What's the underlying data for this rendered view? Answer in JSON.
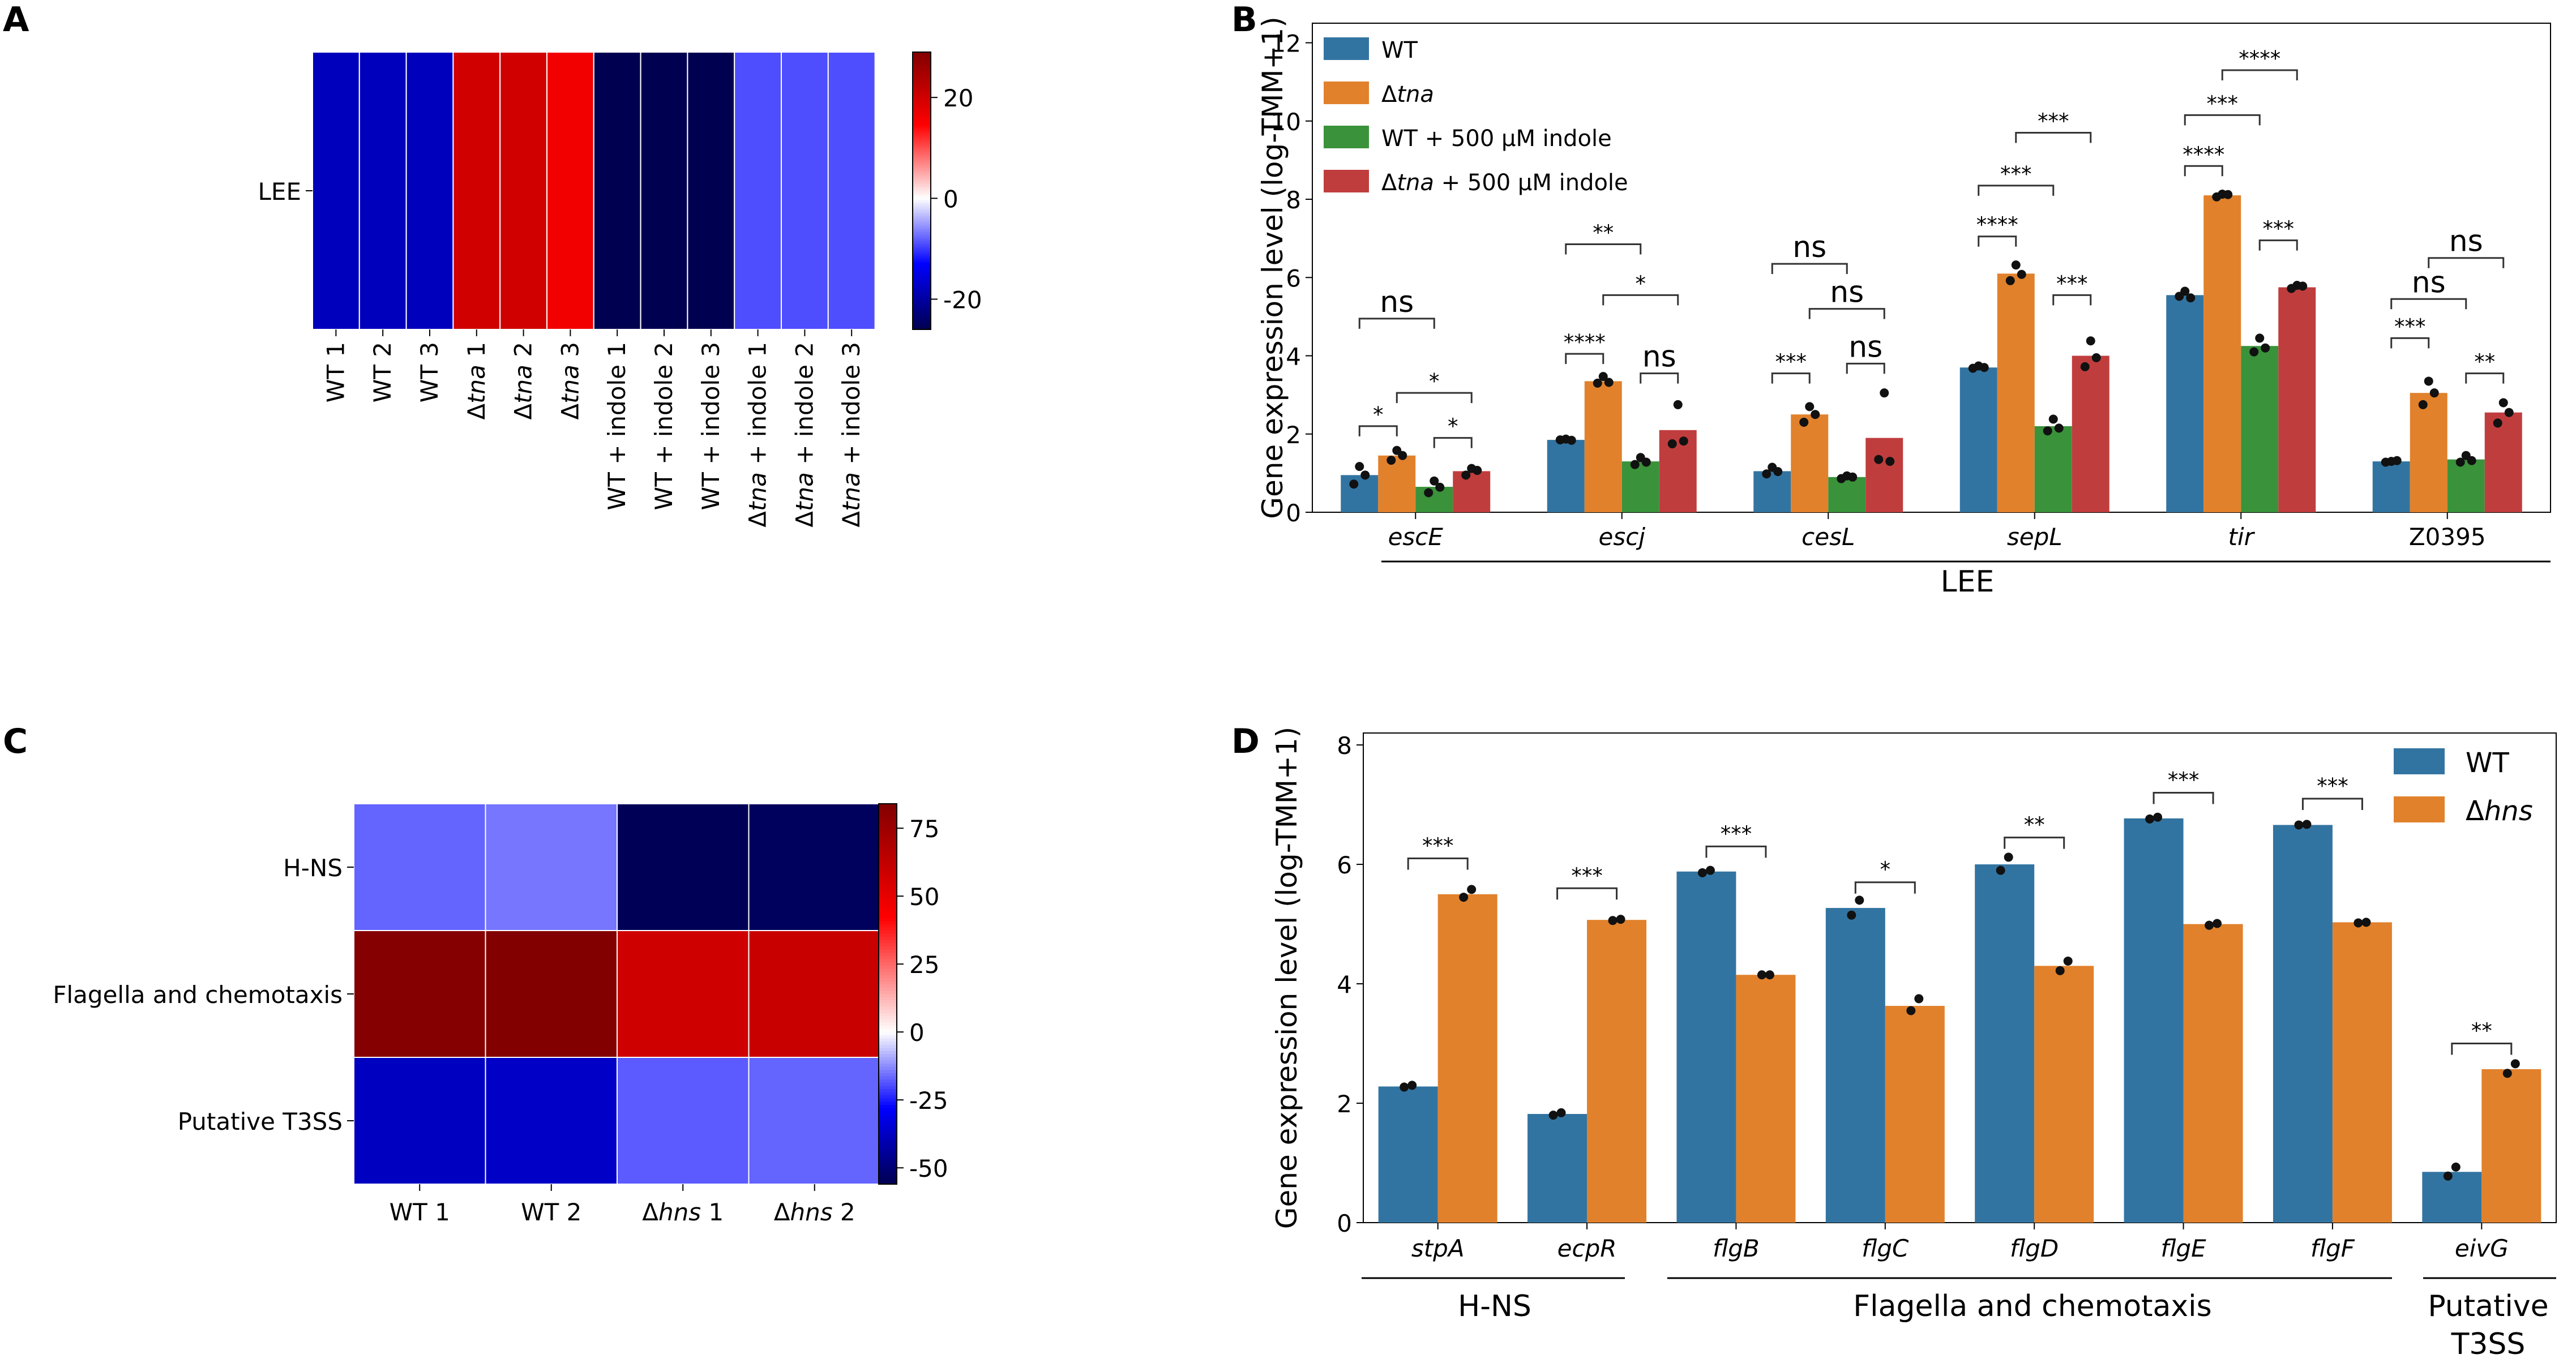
{
  "colors": {
    "wt": "#3274a1",
    "tna": "#e1812c",
    "wt_indole": "#3a923a",
    "tna_indole": "#c03d3e",
    "dot": "#111111"
  },
  "chart_data": [
    {
      "panel": "A",
      "type": "heatmap",
      "rows": [
        "LEE"
      ],
      "columns": [
        "WT 1",
        "WT 2",
        "WT 3",
        "Δtna 1",
        "Δtna 2",
        "Δtna 3",
        "WT + indole 1",
        "WT + indole 2",
        "WT + indole 3",
        "Δtna + indole 1",
        "Δtna + indole 2",
        "Δtna + indole 3"
      ],
      "column_parts": [
        {
          "pre": "WT",
          "it": "",
          "post": " 1"
        },
        {
          "pre": "WT",
          "it": "",
          "post": " 2"
        },
        {
          "pre": "WT",
          "it": "",
          "post": " 3"
        },
        {
          "pre": "Δ",
          "it": "tna",
          "post": " 1"
        },
        {
          "pre": "Δ",
          "it": "tna",
          "post": " 2"
        },
        {
          "pre": "Δ",
          "it": "tna",
          "post": " 3"
        },
        {
          "pre": "WT + indole 1",
          "it": "",
          "post": ""
        },
        {
          "pre": "WT + indole 2",
          "it": "",
          "post": ""
        },
        {
          "pre": "WT + indole 3",
          "it": "",
          "post": ""
        },
        {
          "pre": "Δ",
          "it": "tna",
          "post": " + indole 1"
        },
        {
          "pre": "Δ",
          "it": "tna",
          "post": " + indole 2"
        },
        {
          "pre": "Δ",
          "it": "tna",
          "post": " + indole 3"
        }
      ],
      "values": [
        [
          -18,
          -18,
          -18,
          20,
          20,
          16,
          -26,
          -26,
          -26,
          -9,
          -9,
          -9
        ]
      ],
      "colorbar": {
        "min": -26,
        "max": 29,
        "ticks": [
          20,
          0,
          -20
        ]
      }
    },
    {
      "panel": "B",
      "type": "bar",
      "ylabel": "Gene expression level (log-TMM+1)",
      "ylim": [
        0,
        12.5
      ],
      "yticks": [
        0,
        2,
        4,
        6,
        8,
        10,
        12
      ],
      "categories": [
        "escE",
        "escj",
        "cesL",
        "sepL",
        "tir",
        "Z0395"
      ],
      "category_italic": [
        true,
        true,
        true,
        true,
        true,
        false
      ],
      "group_label": "LEE",
      "legend": [
        {
          "pre": "WT",
          "it": "",
          "post": ""
        },
        {
          "pre": "Δ",
          "it": "tna",
          "post": ""
        },
        {
          "pre": "WT + 500 μM indole",
          "it": "",
          "post": ""
        },
        {
          "pre": "Δ",
          "it": "tna",
          "post": " + 500 μM indole"
        }
      ],
      "series": [
        {
          "name": "WT",
          "values": [
            0.95,
            1.85,
            1.05,
            3.7,
            5.55,
            1.3
          ]
        },
        {
          "name": "Δtna",
          "values": [
            1.45,
            3.35,
            2.5,
            6.1,
            8.1,
            3.05
          ]
        },
        {
          "name": "WT + 500 μM indole",
          "values": [
            0.65,
            1.3,
            0.9,
            2.2,
            4.25,
            1.35
          ]
        },
        {
          "name": "Δtna + 500 μM indole",
          "values": [
            1.05,
            2.1,
            1.9,
            4.0,
            5.75,
            2.55
          ]
        }
      ],
      "points": [
        [
          [
            0.72,
            1.17,
            0.95
          ],
          [
            1.33,
            1.58,
            1.45
          ],
          [
            0.5,
            0.8,
            0.64
          ],
          [
            0.95,
            1.12,
            1.07
          ]
        ],
        [
          [
            1.85,
            1.87,
            1.84
          ],
          [
            3.3,
            3.47,
            3.32
          ],
          [
            1.22,
            1.4,
            1.28
          ],
          [
            1.75,
            2.75,
            1.82
          ]
        ],
        [
          [
            0.98,
            1.15,
            1.04
          ],
          [
            2.3,
            2.7,
            2.5
          ],
          [
            0.86,
            0.93,
            0.9
          ],
          [
            1.35,
            3.05,
            1.3
          ]
        ],
        [
          [
            3.68,
            3.74,
            3.7
          ],
          [
            5.92,
            6.32,
            6.08
          ],
          [
            2.08,
            2.38,
            2.15
          ],
          [
            3.72,
            4.38,
            3.95
          ]
        ],
        [
          [
            5.52,
            5.65,
            5.48
          ],
          [
            8.06,
            8.13,
            8.12
          ],
          [
            4.1,
            4.45,
            4.2
          ],
          [
            5.72,
            5.8,
            5.78
          ]
        ],
        [
          [
            1.28,
            1.3,
            1.32
          ],
          [
            2.75,
            3.35,
            3.05
          ],
          [
            1.28,
            1.45,
            1.32
          ],
          [
            2.28,
            2.8,
            2.55
          ]
        ]
      ],
      "brackets": [
        {
          "g": 0,
          "a": 0,
          "b": 1,
          "y": 2.2,
          "text": "*"
        },
        {
          "g": 0,
          "a": 2,
          "b": 3,
          "y": 1.9,
          "text": "*"
        },
        {
          "g": 0,
          "a": 1,
          "b": 3,
          "y": 3.05,
          "text": "*"
        },
        {
          "g": 0,
          "a": 0,
          "b": 2,
          "y": 4.95,
          "text": "ns"
        },
        {
          "g": 1,
          "a": 0,
          "b": 1,
          "y": 4.05,
          "text": "****"
        },
        {
          "g": 1,
          "a": 2,
          "b": 3,
          "y": 3.55,
          "text": "ns"
        },
        {
          "g": 1,
          "a": 1,
          "b": 3,
          "y": 5.55,
          "text": "*"
        },
        {
          "g": 1,
          "a": 0,
          "b": 2,
          "y": 6.85,
          "text": "**"
        },
        {
          "g": 2,
          "a": 0,
          "b": 1,
          "y": 3.55,
          "text": "***"
        },
        {
          "g": 2,
          "a": 2,
          "b": 3,
          "y": 3.8,
          "text": "ns"
        },
        {
          "g": 2,
          "a": 1,
          "b": 3,
          "y": 5.2,
          "text": "ns"
        },
        {
          "g": 2,
          "a": 0,
          "b": 2,
          "y": 6.35,
          "text": "ns"
        },
        {
          "g": 3,
          "a": 2,
          "b": 3,
          "y": 5.55,
          "text": "***"
        },
        {
          "g": 3,
          "a": 0,
          "b": 1,
          "y": 7.05,
          "text": "****"
        },
        {
          "g": 3,
          "a": 0,
          "b": 2,
          "y": 8.35,
          "text": "***"
        },
        {
          "g": 3,
          "a": 1,
          "b": 3,
          "y": 9.7,
          "text": "***"
        },
        {
          "g": 4,
          "a": 2,
          "b": 3,
          "y": 6.95,
          "text": "***"
        },
        {
          "g": 4,
          "a": 0,
          "b": 1,
          "y": 8.85,
          "text": "****"
        },
        {
          "g": 4,
          "a": 0,
          "b": 2,
          "y": 10.15,
          "text": "***"
        },
        {
          "g": 4,
          "a": 1,
          "b": 3,
          "y": 11.3,
          "text": "****"
        },
        {
          "g": 5,
          "a": 2,
          "b": 3,
          "y": 3.55,
          "text": "**"
        },
        {
          "g": 5,
          "a": 0,
          "b": 1,
          "y": 4.45,
          "text": "***"
        },
        {
          "g": 5,
          "a": 0,
          "b": 2,
          "y": 5.45,
          "text": "ns"
        },
        {
          "g": 5,
          "a": 1,
          "b": 3,
          "y": 6.5,
          "text": "ns"
        }
      ]
    },
    {
      "panel": "C",
      "type": "heatmap",
      "rows": [
        "H-NS",
        "Flagella and chemotaxis",
        "Putative T3SS"
      ],
      "columns": [
        "WT 1",
        "WT 2",
        "Δhns 1",
        "Δhns 2"
      ],
      "column_parts": [
        {
          "pre": "WT 1",
          "it": "",
          "post": ""
        },
        {
          "pre": "WT 2",
          "it": "",
          "post": ""
        },
        {
          "pre": "Δ",
          "it": "hns",
          "post": " 1"
        },
        {
          "pre": "Δ",
          "it": "hns",
          "post": " 2"
        }
      ],
      "values": [
        [
          -17,
          -15,
          -55,
          -54
        ],
        [
          83,
          84,
          58,
          60
        ],
        [
          -38,
          -37,
          -18,
          -17
        ]
      ],
      "colorbar": {
        "min": -56,
        "max": 84,
        "ticks": [
          75,
          50,
          25,
          0,
          -25,
          -50
        ]
      }
    },
    {
      "panel": "D",
      "type": "bar",
      "ylabel": "Gene expression level (log-TMM+1)",
      "ylim": [
        0,
        8.2
      ],
      "yticks": [
        0,
        2,
        4,
        6,
        8
      ],
      "categories": [
        "stpA",
        "ecpR",
        "flgB",
        "flgC",
        "flgD",
        "flgE",
        "flgF",
        "eivG"
      ],
      "group_labels": [
        "H-NS",
        "Flagella and chemotaxis",
        "Putative",
        "T3SS"
      ],
      "legend": [
        {
          "pre": "WT",
          "it": "",
          "post": ""
        },
        {
          "pre": "Δ",
          "it": "hns",
          "post": ""
        }
      ],
      "series": [
        {
          "name": "WT",
          "values": [
            2.28,
            1.82,
            5.88,
            5.27,
            6.0,
            6.77,
            6.66,
            0.85
          ]
        },
        {
          "name": "Δhns",
          "values": [
            5.5,
            5.07,
            4.15,
            3.63,
            4.3,
            5.0,
            5.03,
            2.57
          ]
        }
      ],
      "points": [
        [
          [
            2.27,
            2.3
          ],
          [
            5.45,
            5.58
          ]
        ],
        [
          [
            1.8,
            1.84
          ],
          [
            5.06,
            5.08
          ]
        ],
        [
          [
            5.86,
            5.9
          ],
          [
            4.15,
            4.15
          ]
        ],
        [
          [
            5.15,
            5.4
          ],
          [
            3.55,
            3.75
          ]
        ],
        [
          [
            5.9,
            6.12
          ],
          [
            4.22,
            4.38
          ]
        ],
        [
          [
            6.76,
            6.79
          ],
          [
            4.98,
            5.01
          ]
        ],
        [
          [
            6.66,
            6.67
          ],
          [
            5.02,
            5.03
          ]
        ],
        [
          [
            0.78,
            0.93
          ],
          [
            2.5,
            2.66
          ]
        ]
      ],
      "brackets": [
        {
          "g": 0,
          "y": 6.1,
          "text": "***"
        },
        {
          "g": 1,
          "y": 5.6,
          "text": "***"
        },
        {
          "g": 2,
          "y": 6.3,
          "text": "***"
        },
        {
          "g": 3,
          "y": 5.7,
          "text": "*"
        },
        {
          "g": 4,
          "y": 6.45,
          "text": "**"
        },
        {
          "g": 5,
          "y": 7.2,
          "text": "***"
        },
        {
          "g": 6,
          "y": 7.1,
          "text": "***"
        },
        {
          "g": 7,
          "y": 3.0,
          "text": "**"
        }
      ]
    }
  ]
}
